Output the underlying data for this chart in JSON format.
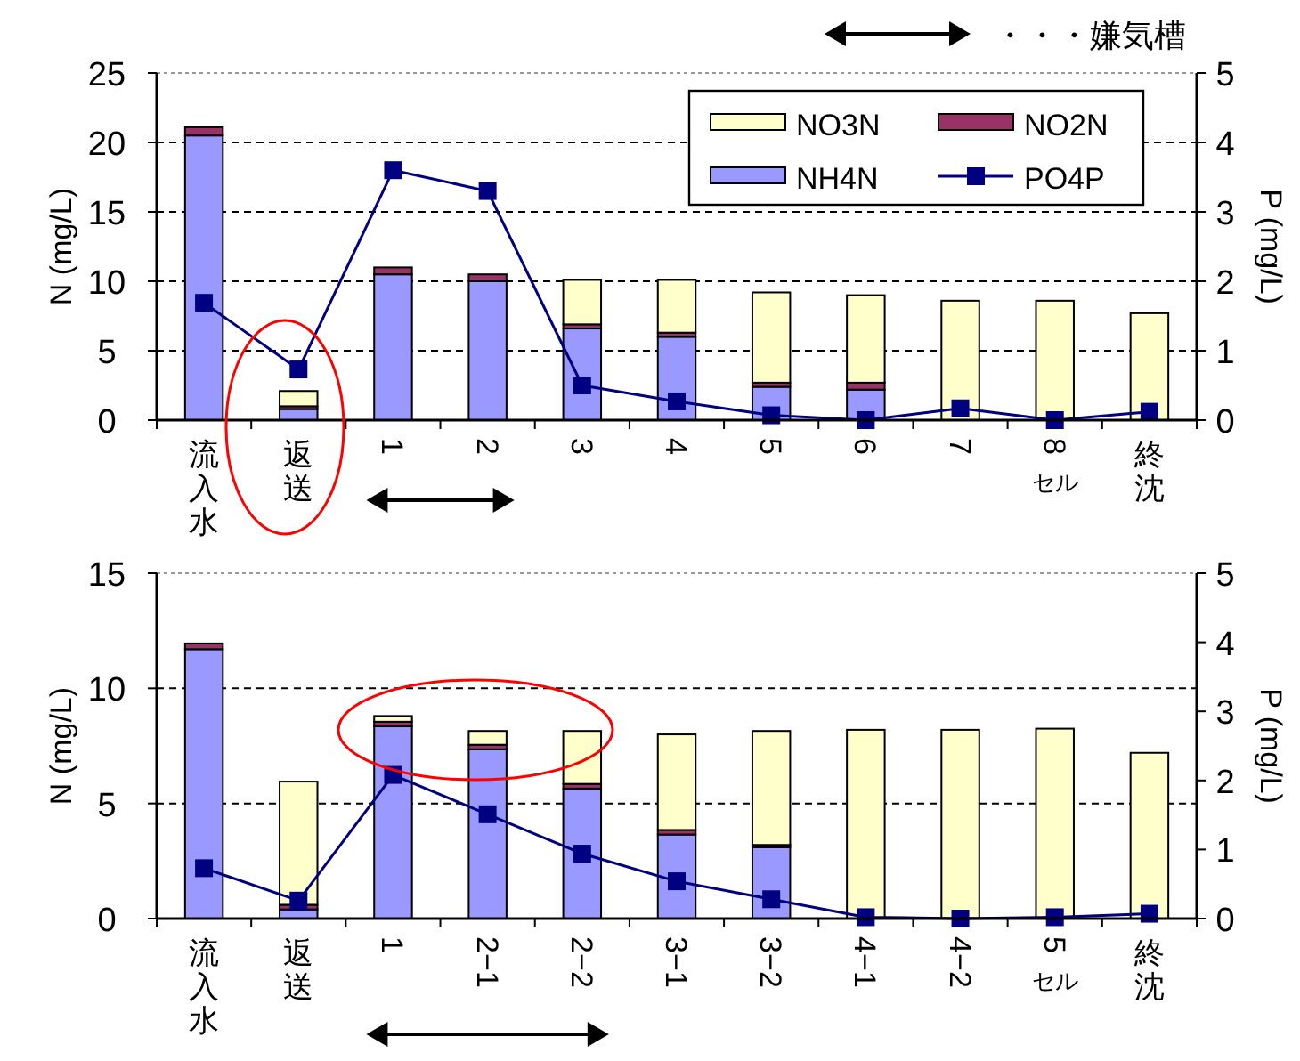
{
  "chart_data": [
    {
      "type": "bar",
      "stacked": true,
      "categories": [
        "流入水",
        "返送",
        "1",
        "2",
        "3",
        "4",
        "5",
        "6",
        "7",
        "8セル",
        "終沈"
      ],
      "ylabel": "N (mg/L)",
      "y2label": "P (mg/L)",
      "ylim": [
        0,
        25
      ],
      "yticks": [
        0,
        5,
        10,
        15,
        20,
        25
      ],
      "y2lim": [
        0,
        5
      ],
      "y2ticks": [
        0,
        1,
        2,
        3,
        4,
        5
      ],
      "grid": "y",
      "legend": "top right",
      "annotations": [
        "・・・嫌気槽"
      ],
      "series": [
        {
          "name": "NH4N",
          "color": "#9999ff",
          "values": [
            20.5,
            0.8,
            10.5,
            10.0,
            6.6,
            6.0,
            2.4,
            2.2,
            0,
            0,
            0
          ]
        },
        {
          "name": "NO2N",
          "color": "#993366",
          "values": [
            0.6,
            0.2,
            0.5,
            0.5,
            0.3,
            0.3,
            0.3,
            0.5,
            0,
            0,
            0
          ]
        },
        {
          "name": "NO3N",
          "color": "#ffffcc",
          "values": [
            0,
            1.1,
            0,
            0,
            3.2,
            3.8,
            6.5,
            6.3,
            8.6,
            8.6,
            7.7
          ]
        },
        {
          "name": "PO4P",
          "color": "#000080",
          "type": "line",
          "axis": "y2",
          "marker": "square",
          "values": [
            1.69,
            0.73,
            3.6,
            3.3,
            0.5,
            0.27,
            0.07,
            0,
            0.17,
            0,
            0.12
          ]
        }
      ]
    },
    {
      "type": "bar",
      "stacked": true,
      "categories": [
        "流入水",
        "返送",
        "1",
        "2−1",
        "2−2",
        "3−1",
        "3−2",
        "4−1",
        "4−2",
        "5セル",
        "終沈"
      ],
      "ylabel": "N (mg/L)",
      "y2label": "P (mg/L)",
      "ylim": [
        0,
        15
      ],
      "yticks": [
        0,
        5,
        10,
        15
      ],
      "y2lim": [
        0,
        5
      ],
      "y2ticks": [
        0,
        1,
        2,
        3,
        4,
        5
      ],
      "grid": "y",
      "series": [
        {
          "color": "#9999ff",
          "values": [
            11.7,
            0.4,
            8.35,
            7.35,
            5.65,
            3.65,
            3.1,
            null,
            null,
            0,
            0
          ]
        },
        {
          "color": "#993366",
          "values": [
            0.25,
            0.2,
            0.2,
            0.2,
            0.2,
            0.2,
            0.1,
            null,
            null,
            0,
            0
          ]
        },
        {
          "color": "#ffffcc",
          "values": [
            0,
            5.35,
            0.25,
            0.6,
            2.3,
            4.15,
            4.95,
            8.2,
            8.2,
            8.25,
            7.2
          ]
        },
        {
          "color": "#000080",
          "type": "line",
          "axis": "y2",
          "marker": "square",
          "values": [
            0.73,
            0.26,
            2.08,
            1.51,
            0.94,
            0.54,
            0.28,
            0.02,
            0,
            0.02,
            0.07
          ]
        }
      ]
    }
  ]
}
